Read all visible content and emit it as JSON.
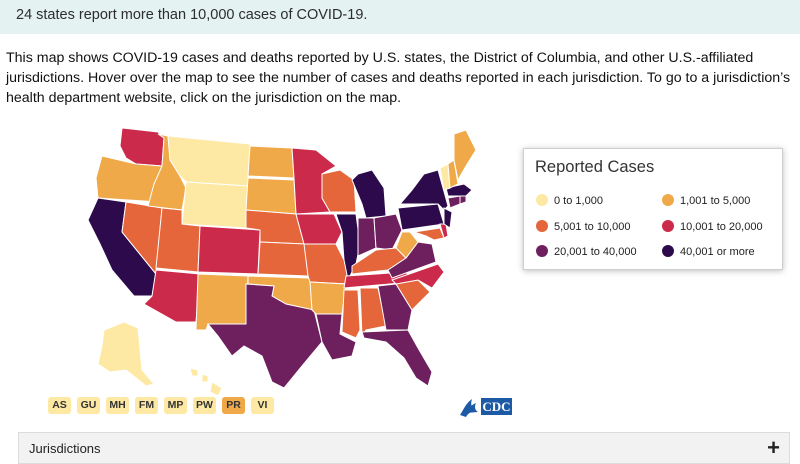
{
  "banner": {
    "text": "24 states report more than 10,000 cases of COVID-19."
  },
  "intro": {
    "text": "This map shows COVID-19 cases and deaths reported by U.S. states, the District of Columbia, and other U.S.-affiliated jurisdictions. Hover over the map to see the number of cases and deaths reported in each jurisdiction. To go to a jurisdiction’s health department website, click on the jurisdiction on the map."
  },
  "legend": {
    "title": "Reported Cases",
    "items": [
      {
        "label": "0 to 1,000",
        "color": "#fde9a3"
      },
      {
        "label": "1,001 to 5,000",
        "color": "#f0a948"
      },
      {
        "label": "5,001 to 10,000",
        "color": "#e4663a"
      },
      {
        "label": "10,001 to 20,000",
        "color": "#cc2a4b"
      },
      {
        "label": "20,001 to 40,000",
        "color": "#6e1f5d"
      },
      {
        "label": "40,001 or more",
        "color": "#2c0a4b"
      }
    ]
  },
  "territories": [
    {
      "code": "AS",
      "color": "#fde9a3"
    },
    {
      "code": "GU",
      "color": "#fde9a3"
    },
    {
      "code": "MH",
      "color": "#fde9a3"
    },
    {
      "code": "FM",
      "color": "#fde9a3"
    },
    {
      "code": "MP",
      "color": "#fde9a3"
    },
    {
      "code": "PW",
      "color": "#fde9a3"
    },
    {
      "code": "PR",
      "color": "#f0a948"
    },
    {
      "code": "VI",
      "color": "#fde9a3"
    }
  ],
  "logo": {
    "text": "CDC"
  },
  "accordion": {
    "label": "Jurisdictions",
    "toggle": "+"
  }
}
